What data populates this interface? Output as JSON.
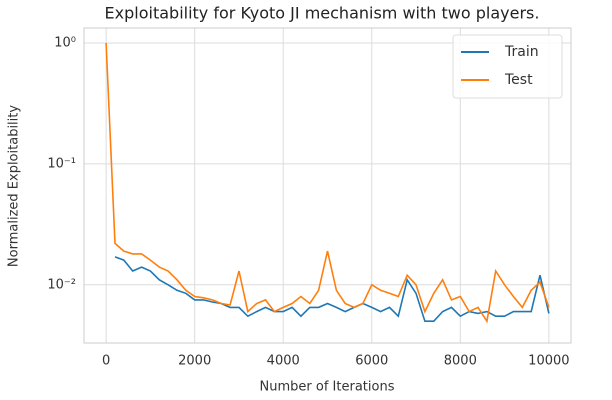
{
  "chart_data": {
    "type": "line",
    "title": "Exploitability for Kyoto JI mechanism with two players.",
    "x_label": "Number of Iterations",
    "y_label": "Normalized Exploitability",
    "x": [
      0,
      200,
      400,
      600,
      800,
      1000,
      1200,
      1400,
      1600,
      1800,
      2000,
      2200,
      2400,
      2600,
      2800,
      3000,
      3200,
      3400,
      3600,
      3800,
      4000,
      4200,
      4400,
      4600,
      4800,
      5000,
      5200,
      5400,
      5600,
      5800,
      6000,
      6200,
      6400,
      6600,
      6800,
      7000,
      7200,
      7400,
      7600,
      7800,
      8000,
      8200,
      8400,
      8600,
      8800,
      9000,
      9200,
      9400,
      9600,
      9800,
      10000
    ],
    "series": [
      {
        "name": "Train",
        "color": "#1f77b4",
        "values": [
          null,
          0.017,
          0.016,
          0.013,
          0.014,
          0.013,
          0.011,
          0.01,
          0.009,
          0.0085,
          0.0075,
          0.0075,
          0.0072,
          0.007,
          0.0065,
          0.0065,
          0.0055,
          0.006,
          0.0065,
          0.006,
          0.006,
          0.0065,
          0.0055,
          0.0065,
          0.0065,
          0.007,
          0.0065,
          0.006,
          0.0065,
          0.007,
          0.0065,
          0.006,
          0.0065,
          0.0055,
          0.011,
          0.0085,
          0.005,
          0.005,
          0.006,
          0.0065,
          0.0055,
          0.006,
          0.0058,
          0.006,
          0.0055,
          0.0055,
          0.006,
          0.006,
          0.006,
          0.012,
          0.0058
        ]
      },
      {
        "name": "Test",
        "color": "#ff7f0e",
        "values": [
          1.0,
          0.022,
          0.019,
          0.018,
          0.018,
          0.016,
          0.014,
          0.013,
          0.011,
          0.009,
          0.008,
          0.0078,
          0.0075,
          0.007,
          0.0068,
          0.013,
          0.006,
          0.007,
          0.0075,
          0.006,
          0.0065,
          0.007,
          0.008,
          0.007,
          0.009,
          0.019,
          0.009,
          0.007,
          0.0065,
          0.007,
          0.01,
          0.009,
          0.0085,
          0.008,
          0.012,
          0.01,
          0.006,
          0.0085,
          0.011,
          0.0075,
          0.008,
          0.006,
          0.0065,
          0.005,
          0.013,
          0.01,
          0.008,
          0.0065,
          0.009,
          0.0105,
          0.0065
        ]
      }
    ],
    "xlim": [
      -500,
      10500
    ],
    "xticks": [
      0,
      2000,
      4000,
      6000,
      8000,
      10000
    ],
    "ylim": [
      0.0033,
      1.33
    ],
    "yticks": [
      {
        "value": 1,
        "label": "10⁰"
      },
      {
        "value": 0.1,
        "label": "10⁻¹"
      },
      {
        "value": 0.01,
        "label": "10⁻²"
      }
    ],
    "log_y": true,
    "grid": true,
    "legend": "upper right"
  }
}
